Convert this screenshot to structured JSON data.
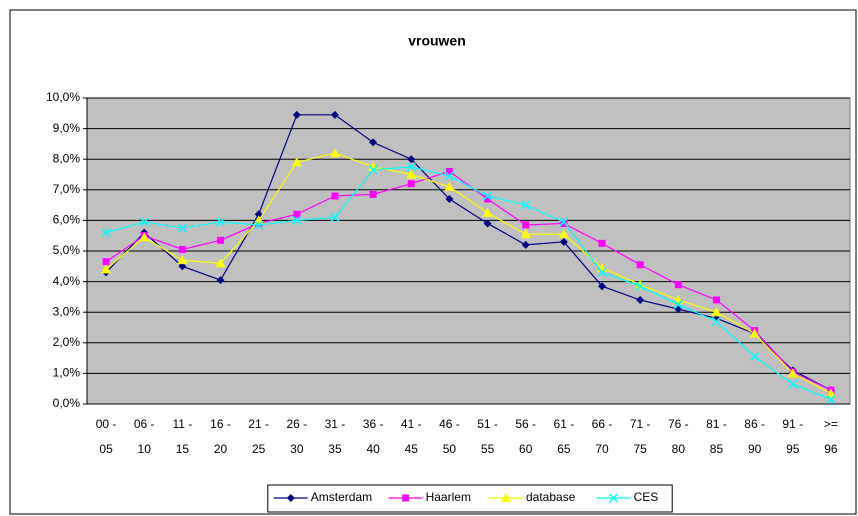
{
  "chart_data": {
    "type": "line",
    "title": "vrouwen",
    "categories": [
      [
        "00 -",
        "05"
      ],
      [
        "06 -",
        "10"
      ],
      [
        "11 -",
        "15"
      ],
      [
        "16 -",
        "20"
      ],
      [
        "21 -",
        "25"
      ],
      [
        "26 -",
        "30"
      ],
      [
        "31 -",
        "35"
      ],
      [
        "36 -",
        "40"
      ],
      [
        "41 -",
        "45"
      ],
      [
        "46 -",
        "50"
      ],
      [
        "51 -",
        "55"
      ],
      [
        "56 -",
        "60"
      ],
      [
        "61 -",
        "65"
      ],
      [
        "66 -",
        "70"
      ],
      [
        "71 -",
        "75"
      ],
      [
        "76 -",
        "80"
      ],
      [
        "81 -",
        "85"
      ],
      [
        "86 -",
        "90"
      ],
      [
        "91 -",
        "95"
      ],
      [
        ">=",
        "96"
      ]
    ],
    "series": [
      {
        "name": "Amsterdam",
        "color": "#000080",
        "marker": "diamond",
        "values": [
          4.3,
          5.6,
          4.5,
          4.05,
          6.2,
          9.45,
          9.45,
          8.55,
          8.0,
          6.7,
          5.9,
          5.2,
          5.3,
          3.85,
          3.4,
          3.1,
          2.8,
          2.3,
          1.1,
          0.45
        ]
      },
      {
        "name": "Haarlem",
        "color": "#ff00ff",
        "marker": "square",
        "values": [
          4.65,
          5.5,
          5.05,
          5.35,
          5.9,
          6.2,
          6.8,
          6.85,
          7.2,
          7.6,
          6.7,
          5.85,
          5.9,
          5.25,
          4.55,
          3.9,
          3.4,
          2.4,
          1.05,
          0.45
        ]
      },
      {
        "name": "database",
        "color": "#ffff00",
        "marker": "triangle",
        "values": [
          4.4,
          5.45,
          4.7,
          4.6,
          6.0,
          7.9,
          8.2,
          7.75,
          7.5,
          7.1,
          6.25,
          5.55,
          5.55,
          4.45,
          3.9,
          3.4,
          3.0,
          2.3,
          1.0,
          0.35
        ]
      },
      {
        "name": "CES",
        "color": "#00ffff",
        "marker": "x",
        "values": [
          5.6,
          5.95,
          5.75,
          5.95,
          5.85,
          6.0,
          6.1,
          7.65,
          7.75,
          7.45,
          6.8,
          6.5,
          5.95,
          4.3,
          3.85,
          3.25,
          2.7,
          1.55,
          0.65,
          0.15
        ]
      }
    ],
    "ylim": [
      0,
      10
    ],
    "yticks": [
      {
        "value": 0,
        "label": "0,0%"
      },
      {
        "value": 1,
        "label": "1,0%"
      },
      {
        "value": 2,
        "label": "2,0%"
      },
      {
        "value": 3,
        "label": "3,0%"
      },
      {
        "value": 4,
        "label": "4,0%"
      },
      {
        "value": 5,
        "label": "5,0%"
      },
      {
        "value": 6,
        "label": "6,0%"
      },
      {
        "value": 7,
        "label": "7,0%"
      },
      {
        "value": 8,
        "label": "8,0%"
      },
      {
        "value": 9,
        "label": "9,0%"
      },
      {
        "value": 10,
        "label": "10,0%"
      }
    ],
    "grid": true,
    "legend": "bottom"
  }
}
